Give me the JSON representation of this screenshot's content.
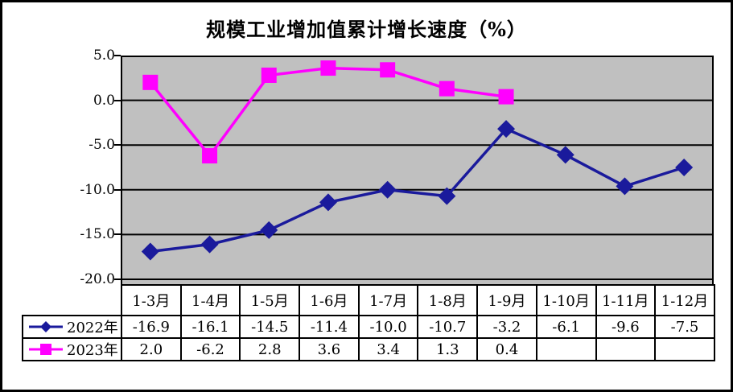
{
  "chart_data": {
    "type": "line",
    "title": "规模工业增加值累计增长速度（%）",
    "categories": [
      "1-3月",
      "1-4月",
      "1-5月",
      "1-6月",
      "1-7月",
      "1-8月",
      "1-9月",
      "1-10月",
      "1-11月",
      "1-12月"
    ],
    "series": [
      {
        "name": "2022年",
        "color": "#1a1a9c",
        "marker": "diamond",
        "values": [
          -16.9,
          -16.1,
          -14.5,
          -11.4,
          -10.0,
          -10.7,
          -3.2,
          -6.1,
          -9.6,
          -7.5
        ]
      },
      {
        "name": "2023年",
        "color": "#ff00ff",
        "marker": "square",
        "values": [
          2.0,
          -6.2,
          2.8,
          3.6,
          3.4,
          1.3,
          0.4,
          null,
          null,
          null
        ]
      }
    ],
    "y_axis": {
      "ticks": [
        5.0,
        0.0,
        -5.0,
        -10.0,
        -15.0,
        -20.0
      ],
      "tick_labels": [
        "5.0",
        "0.0",
        "-5.0",
        "-10.0",
        "-15.0",
        "-20.0"
      ],
      "max": 5.0,
      "min": -20.7
    },
    "plot": {
      "background": "#c0c0c0",
      "gridline_color": "#000000",
      "grid": "horizontal",
      "border_color": "#000000"
    },
    "legend_position": "data-table-left",
    "data_table_shown": true
  },
  "frame": {
    "background": "#ffffff",
    "border_color": "#000000"
  }
}
